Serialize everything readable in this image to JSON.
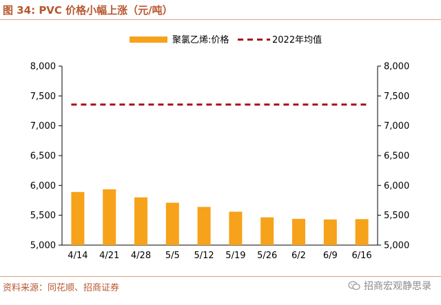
{
  "header": {
    "title": "图 34:  PVC 价格小幅上涨（元/吨）"
  },
  "footer": {
    "source": "资料来源：同花顺、招商证券",
    "brand": "招商宏观静思录"
  },
  "colors": {
    "bar": "#f7a21b",
    "average_line": "#a80e12",
    "axis": "#000000",
    "accent": "#b8572e"
  },
  "icons": {
    "brand_icon": "wechat-icon"
  },
  "chart_data": {
    "type": "bar",
    "categories": [
      "4/14",
      "4/21",
      "4/28",
      "5/5",
      "5/12",
      "5/19",
      "5/26",
      "6/2",
      "6/9",
      "6/16"
    ],
    "series": [
      {
        "name": "聚氯乙烯:价格",
        "type": "bar",
        "values": [
          5890,
          5935,
          5800,
          5710,
          5640,
          5560,
          5465,
          5440,
          5430,
          5435
        ]
      },
      {
        "name": "2022年均值",
        "type": "line",
        "style": "dashed",
        "values": [
          7355,
          7355,
          7355,
          7355,
          7355,
          7355,
          7355,
          7355,
          7355,
          7355
        ]
      }
    ],
    "ylim": [
      5000,
      8000
    ],
    "yticks": [
      "5,000",
      "5,500",
      "6,000",
      "6,500",
      "7,000",
      "7,500",
      "8,000"
    ],
    "ytick_values": [
      5000,
      5500,
      6000,
      6500,
      7000,
      7500,
      8000
    ],
    "secondary_ylim": [
      5000,
      8000
    ],
    "legend_position": "top",
    "grid": false
  }
}
